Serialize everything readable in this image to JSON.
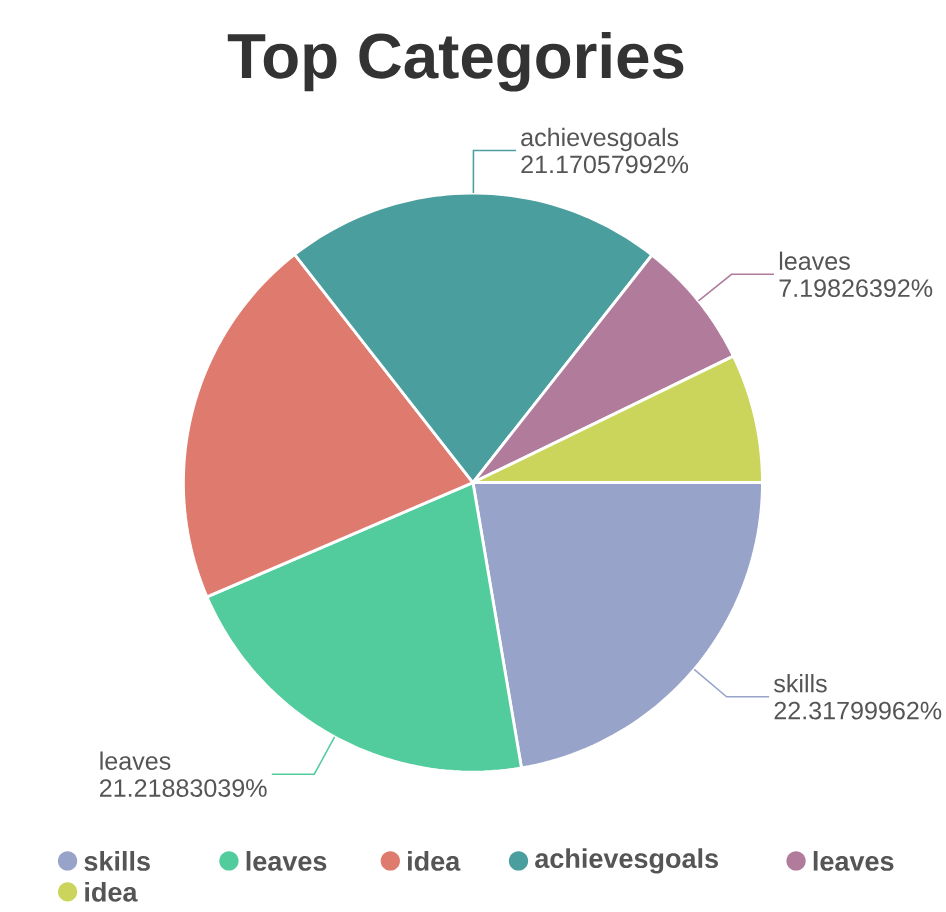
{
  "chart_data": {
    "type": "pie",
    "title": "Top Categories",
    "categories": [
      "skills",
      "leaves",
      "idea",
      "achievesgoals",
      "leaves",
      "idea"
    ],
    "values": [
      22.31799962,
      21.21883039,
      20.9,
      21.17057992,
      7.19826392,
      7.19
    ],
    "value_labels": [
      "22.31799962%",
      "21.21883039%",
      null,
      "21.17057992%",
      "7.19826392%",
      null
    ],
    "colors": [
      "#97a3c9",
      "#52cc9c",
      "#df7a6e",
      "#4b9e9e",
      "#b17c9c",
      "#cbd55b"
    ],
    "legend": "bottom"
  }
}
